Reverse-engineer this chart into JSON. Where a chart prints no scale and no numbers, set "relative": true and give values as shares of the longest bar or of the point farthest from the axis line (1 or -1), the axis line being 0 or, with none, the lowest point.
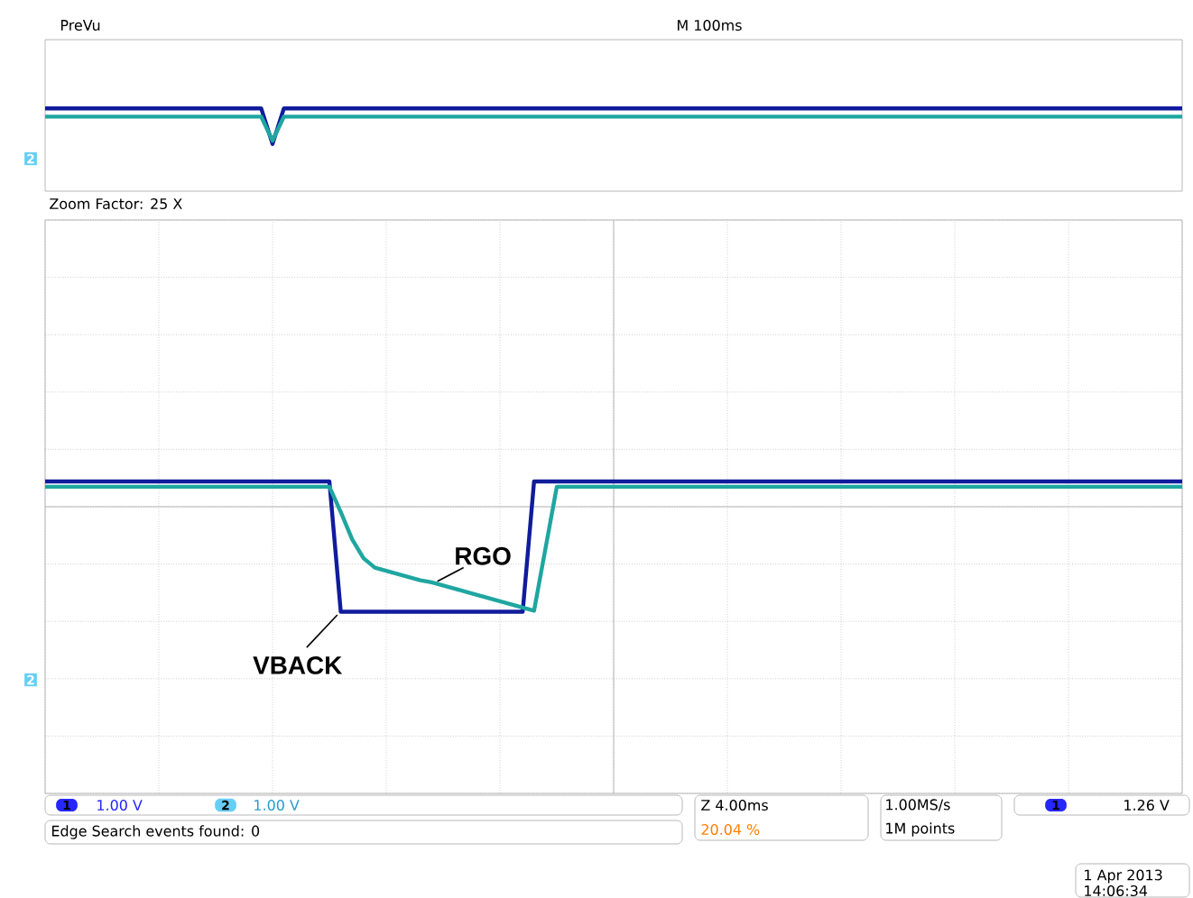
{
  "chart_data": [
    {
      "type": "line",
      "title": "PreVu",
      "subtitle": "M 100ms",
      "relative": true,
      "tick_labels": false,
      "categories": [
        null,
        null,
        null,
        null,
        null,
        null,
        null,
        null,
        null,
        null,
        null,
        null,
        null,
        null,
        null,
        null,
        null,
        null,
        null,
        null,
        null,
        null,
        null,
        null,
        null,
        null,
        null,
        null,
        null,
        null,
        null,
        null,
        null,
        null,
        null,
        null,
        null,
        null,
        null,
        null,
        null,
        null,
        null,
        null,
        null,
        null,
        null,
        null,
        null,
        null,
        null,
        null,
        null,
        null,
        null,
        null,
        null,
        null,
        null,
        null,
        null,
        null,
        null,
        null,
        null,
        null,
        null,
        null,
        null,
        null,
        null,
        null,
        null,
        null,
        null,
        null,
        null,
        null,
        null,
        null,
        null,
        null,
        null,
        null,
        null,
        null,
        null,
        null,
        null,
        null,
        null,
        null,
        null,
        null,
        null,
        null,
        null,
        null,
        null,
        null,
        null
      ],
      "series": [
        {
          "color": "#101c9c",
          "values": [
            1,
            1,
            1,
            1,
            1,
            1,
            1,
            1,
            1,
            1,
            1,
            1,
            1,
            1,
            1,
            1,
            1,
            1,
            1,
            1,
            0.57,
            1,
            1,
            1,
            1,
            1,
            1,
            1,
            1,
            1,
            1,
            1,
            1,
            1,
            1,
            1,
            1,
            1,
            1,
            1,
            1,
            1,
            1,
            1,
            1,
            1,
            1,
            1,
            1,
            1,
            1,
            1,
            1,
            1,
            1,
            1,
            1,
            1,
            1,
            1,
            1,
            1,
            1,
            1,
            1,
            1,
            1,
            1,
            1,
            1,
            1,
            1,
            1,
            1,
            1,
            1,
            1,
            1,
            1,
            1,
            1,
            1,
            1,
            1,
            1,
            1,
            1,
            1,
            1,
            1,
            1,
            1,
            1,
            1,
            1,
            1,
            1,
            1,
            1,
            1,
            1
          ]
        },
        {
          "color": "#1fa6a0",
          "values": [
            0.9,
            0.9,
            0.9,
            0.9,
            0.9,
            0.9,
            0.9,
            0.9,
            0.9,
            0.9,
            0.9,
            0.9,
            0.9,
            0.9,
            0.9,
            0.9,
            0.9,
            0.9,
            0.9,
            0.9,
            0.61,
            0.9,
            0.9,
            0.9,
            0.9,
            0.9,
            0.9,
            0.9,
            0.9,
            0.9,
            0.9,
            0.9,
            0.9,
            0.9,
            0.9,
            0.9,
            0.9,
            0.9,
            0.9,
            0.9,
            0.9,
            0.9,
            0.9,
            0.9,
            0.9,
            0.9,
            0.9,
            0.9,
            0.9,
            0.9,
            0.9,
            0.9,
            0.9,
            0.9,
            0.9,
            0.9,
            0.9,
            0.9,
            0.9,
            0.9,
            0.9,
            0.9,
            0.9,
            0.9,
            0.9,
            0.9,
            0.9,
            0.9,
            0.9,
            0.9,
            0.9,
            0.9,
            0.9,
            0.9,
            0.9,
            0.9,
            0.9,
            0.9,
            0.9,
            0.9,
            0.9,
            0.9,
            0.9,
            0.9,
            0.9,
            0.9,
            0.9,
            0.9,
            0.9,
            0.9,
            0.9,
            0.9,
            0.9,
            0.9,
            0.9,
            0.9,
            0.9,
            0.9,
            0.9,
            0.9,
            0.9
          ]
        }
      ],
      "annotations": [
        "2"
      ]
    },
    {
      "type": "line",
      "title": "Zoom Factor: 25 X",
      "relative": true,
      "tick_labels": false,
      "grid": true,
      "categories": [
        null,
        null,
        null,
        null,
        null,
        null,
        null,
        null,
        null,
        null,
        null,
        null,
        null,
        null,
        null,
        null,
        null,
        null,
        null,
        null,
        null,
        null,
        null,
        null,
        null,
        null,
        null,
        null,
        null,
        null,
        null,
        null,
        null,
        null,
        null,
        null,
        null,
        null,
        null,
        null,
        null,
        null,
        null,
        null,
        null,
        null,
        null,
        null,
        null,
        null,
        null,
        null,
        null,
        null,
        null,
        null,
        null,
        null,
        null,
        null,
        null,
        null,
        null,
        null,
        null,
        null,
        null,
        null,
        null,
        null,
        null,
        null,
        null,
        null,
        null,
        null,
        null,
        null,
        null,
        null,
        null,
        null,
        null,
        null,
        null,
        null,
        null,
        null,
        null,
        null,
        null,
        null,
        null,
        null,
        null,
        null,
        null,
        null,
        null,
        null,
        null
      ],
      "series": [
        {
          "name": "VBACK",
          "color": "#101c9c",
          "values": [
            0.24,
            0.24,
            0.24,
            0.24,
            0.24,
            0.24,
            0.24,
            0.24,
            0.24,
            0.24,
            0.24,
            0.24,
            0.24,
            0.24,
            0.24,
            0.24,
            0.24,
            0.24,
            0.24,
            0.24,
            0.24,
            0.24,
            0.24,
            0.24,
            0.24,
            0.24,
            -1,
            -1,
            -1,
            -1,
            -1,
            -1,
            -1,
            -1,
            -1,
            -1,
            -1,
            -1,
            -1,
            -1,
            -1,
            -1,
            -1,
            0.24,
            0.24,
            0.24,
            0.24,
            0.24,
            0.24,
            0.24,
            0.24,
            0.24,
            0.24,
            0.24,
            0.24,
            0.24,
            0.24,
            0.24,
            0.24,
            0.24,
            0.24,
            0.24,
            0.24,
            0.24,
            0.24,
            0.24,
            0.24,
            0.24,
            0.24,
            0.24,
            0.24,
            0.24,
            0.24,
            0.24,
            0.24,
            0.24,
            0.24,
            0.24,
            0.24,
            0.24,
            0.24,
            0.24,
            0.24,
            0.24,
            0.24,
            0.24,
            0.24,
            0.24,
            0.24,
            0.24,
            0.24,
            0.24,
            0.24,
            0.24,
            0.24,
            0.24,
            0.24,
            0.24,
            0.24,
            0.24,
            0.24
          ]
        },
        {
          "name": "RGO",
          "color": "#1fa6a0",
          "values": [
            0.19,
            0.19,
            0.19,
            0.19,
            0.19,
            0.19,
            0.19,
            0.19,
            0.19,
            0.19,
            0.19,
            0.19,
            0.19,
            0.19,
            0.19,
            0.19,
            0.19,
            0.19,
            0.19,
            0.19,
            0.19,
            0.19,
            0.19,
            0.19,
            0.19,
            0.19,
            -0.05,
            -0.31,
            -0.49,
            -0.58,
            -0.61,
            -0.64,
            -0.67,
            -0.7,
            -0.72,
            -0.75,
            -0.78,
            -0.81,
            -0.84,
            -0.87,
            -0.9,
            -0.93,
            -0.96,
            -0.99,
            -0.4,
            0.19,
            0.19,
            0.19,
            0.19,
            0.19,
            0.19,
            0.19,
            0.19,
            0.19,
            0.19,
            0.19,
            0.19,
            0.19,
            0.19,
            0.19,
            0.19,
            0.19,
            0.19,
            0.19,
            0.19,
            0.19,
            0.19,
            0.19,
            0.19,
            0.19,
            0.19,
            0.19,
            0.19,
            0.19,
            0.19,
            0.19,
            0.19,
            0.19,
            0.19,
            0.19,
            0.19,
            0.19,
            0.19,
            0.19,
            0.19,
            0.19,
            0.19,
            0.19,
            0.19,
            0.19,
            0.19,
            0.19,
            0.19,
            0.19,
            0.19,
            0.19,
            0.19,
            0.19,
            0.19,
            0.19,
            0.19
          ]
        }
      ],
      "annotations": [
        "2",
        "1",
        "1.00 V",
        "2",
        "1.00 V",
        "Edge Search events found: 0",
        "Z 4.00ms",
        "20.04 %",
        "1.00MS/s",
        "1M points",
        "1",
        "1.26 V",
        "1 Apr 2013",
        "14:06:34"
      ]
    }
  ]
}
